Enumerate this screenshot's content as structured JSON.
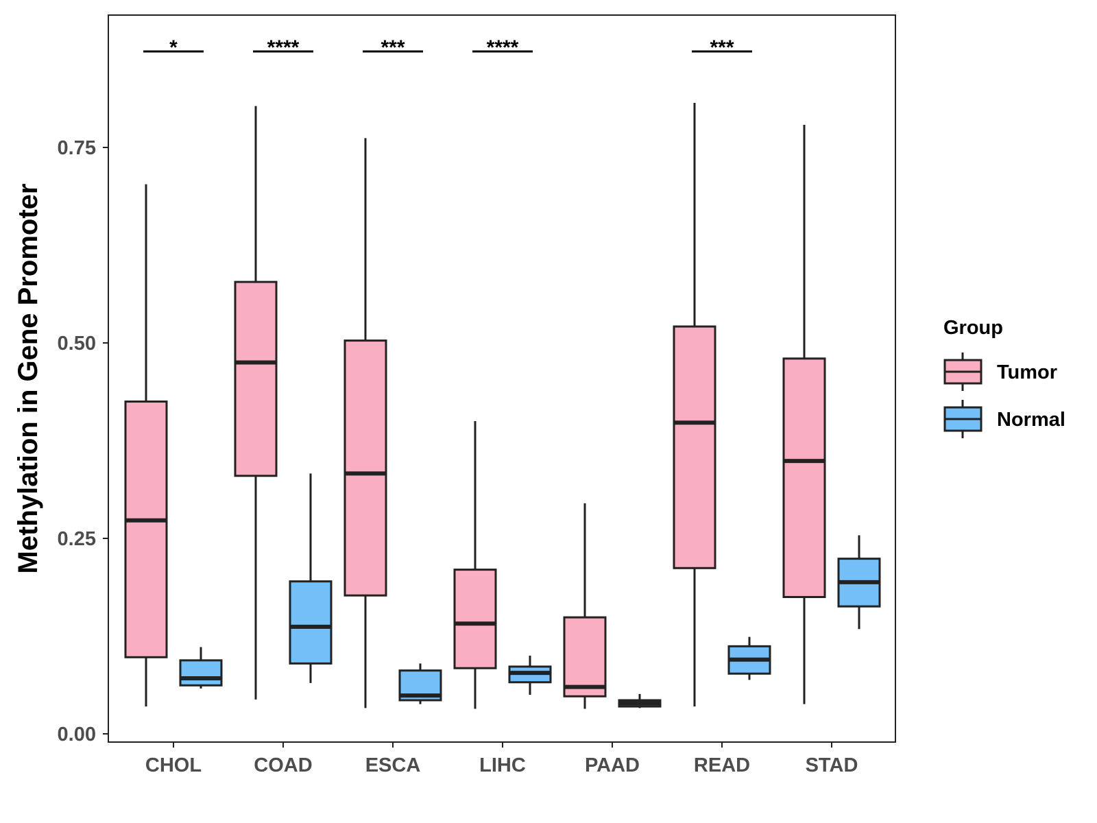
{
  "chart_data": {
    "type": "boxplot",
    "xlabel": "",
    "ylabel": "Methylation in Gene Promoter",
    "ylim": [
      -0.01,
      0.92
    ],
    "yticks": [
      0.0,
      0.25,
      0.5,
      0.75
    ],
    "ytick_labels": [
      "0.00",
      "0.25",
      "0.50",
      "0.75"
    ],
    "categories": [
      "CHOL",
      "COAD",
      "ESCA",
      "LIHC",
      "PAAD",
      "READ",
      "STAD"
    ],
    "legend": {
      "title": "Group",
      "position": "right",
      "entries": [
        {
          "name": "Tumor",
          "color": "#F9AEC1"
        },
        {
          "name": "Normal",
          "color": "#74BFF7"
        }
      ]
    },
    "series": [
      {
        "name": "Tumor",
        "color": "#F9AEC1",
        "boxes": [
          {
            "category": "CHOL",
            "min": 0.035,
            "q1": 0.098,
            "median": 0.273,
            "q3": 0.425,
            "max": 0.703
          },
          {
            "category": "COAD",
            "min": 0.044,
            "q1": 0.33,
            "median": 0.475,
            "q3": 0.578,
            "max": 0.803
          },
          {
            "category": "ESCA",
            "min": 0.033,
            "q1": 0.177,
            "median": 0.333,
            "q3": 0.503,
            "max": 0.762
          },
          {
            "category": "LIHC",
            "min": 0.032,
            "q1": 0.084,
            "median": 0.141,
            "q3": 0.21,
            "max": 0.4
          },
          {
            "category": "PAAD",
            "min": 0.032,
            "q1": 0.048,
            "median": 0.06,
            "q3": 0.149,
            "max": 0.295
          },
          {
            "category": "READ",
            "min": 0.035,
            "q1": 0.212,
            "median": 0.398,
            "q3": 0.521,
            "max": 0.807
          },
          {
            "category": "STAD",
            "min": 0.038,
            "q1": 0.175,
            "median": 0.349,
            "q3": 0.48,
            "max": 0.779
          }
        ]
      },
      {
        "name": "Normal",
        "color": "#74BFF7",
        "boxes": [
          {
            "category": "CHOL",
            "min": 0.058,
            "q1": 0.062,
            "median": 0.071,
            "q3": 0.094,
            "max": 0.111
          },
          {
            "category": "COAD",
            "min": 0.065,
            "q1": 0.09,
            "median": 0.137,
            "q3": 0.195,
            "max": 0.333
          },
          {
            "category": "ESCA",
            "min": 0.038,
            "q1": 0.043,
            "median": 0.049,
            "q3": 0.081,
            "max": 0.09
          },
          {
            "category": "LIHC",
            "min": 0.05,
            "q1": 0.066,
            "median": 0.078,
            "q3": 0.086,
            "max": 0.1
          },
          {
            "category": "PAAD",
            "min": 0.033,
            "q1": 0.035,
            "median": 0.039,
            "q3": 0.043,
            "max": 0.051
          },
          {
            "category": "READ",
            "min": 0.069,
            "q1": 0.077,
            "median": 0.095,
            "q3": 0.112,
            "max": 0.124
          },
          {
            "category": "STAD",
            "min": 0.134,
            "q1": 0.163,
            "median": 0.194,
            "q3": 0.224,
            "max": 0.254
          }
        ]
      }
    ],
    "significance": [
      {
        "category": "CHOL",
        "label": "*"
      },
      {
        "category": "COAD",
        "label": "****"
      },
      {
        "category": "ESCA",
        "label": "***"
      },
      {
        "category": "LIHC",
        "label": "****"
      },
      {
        "category": "READ",
        "label": "***"
      }
    ],
    "grid": false
  }
}
